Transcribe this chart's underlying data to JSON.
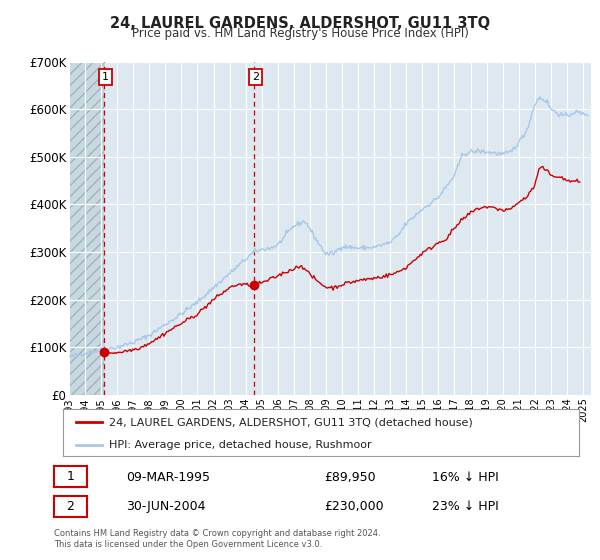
{
  "title": "24, LAUREL GARDENS, ALDERSHOT, GU11 3TQ",
  "subtitle": "Price paid vs. HM Land Registry's House Price Index (HPI)",
  "hpi_color": "#a8c8e8",
  "price_color": "#cc0000",
  "background_color": "#ffffff",
  "plot_bg_color": "#dde8f0",
  "hatch_color": "#c0ccd4",
  "grid_color": "#ffffff",
  "ylim": [
    0,
    700000
  ],
  "yticks": [
    0,
    100000,
    200000,
    300000,
    400000,
    500000,
    600000,
    700000
  ],
  "ytick_labels": [
    "£0",
    "£100K",
    "£200K",
    "£300K",
    "£400K",
    "£500K",
    "£600K",
    "£700K"
  ],
  "xmin": 1993.0,
  "xmax": 2025.5,
  "sale1_x": 1995.18,
  "sale1_y": 89950,
  "sale2_x": 2004.5,
  "sale2_y": 230000,
  "legend_label_red": "24, LAUREL GARDENS, ALDERSHOT, GU11 3TQ (detached house)",
  "legend_label_blue": "HPI: Average price, detached house, Rushmoor",
  "table_row1": [
    "1",
    "09-MAR-1995",
    "£89,950",
    "16% ↓ HPI"
  ],
  "table_row2": [
    "2",
    "30-JUN-2004",
    "£230,000",
    "23% ↓ HPI"
  ],
  "footer": "Contains HM Land Registry data © Crown copyright and database right 2024.\nThis data is licensed under the Open Government Licence v3.0."
}
